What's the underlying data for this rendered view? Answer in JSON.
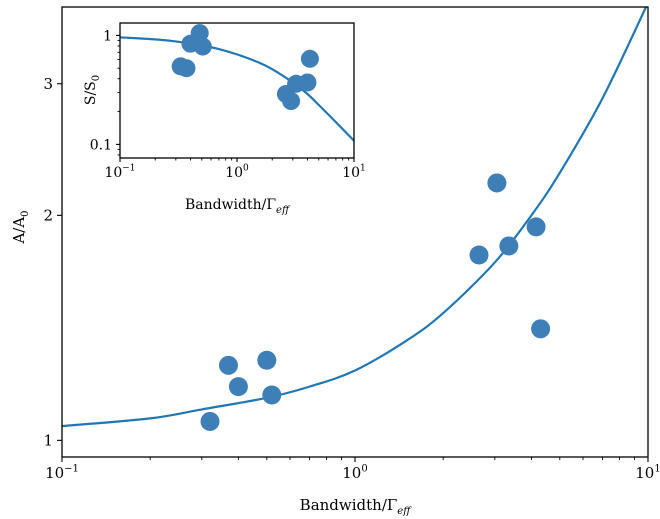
{
  "colors": {
    "series": "#1f77b4",
    "marker": "#3f7fb8",
    "axes": "#000000"
  },
  "chart_data": [
    {
      "type": "scatter",
      "panel": "main",
      "xscale": "log",
      "yscale": "log",
      "xlim": [
        0.1,
        10
      ],
      "ylim": [
        0.95,
        3.8
      ],
      "xlabel": "Bandwidth/Γ",
      "xlabel_sub": "eff",
      "ylabel": "A/A",
      "ylabel_sub": "0",
      "xticks": [
        {
          "value": 0.1,
          "base": "10",
          "exp": "−1"
        },
        {
          "value": 1,
          "base": "10",
          "exp": "0"
        },
        {
          "value": 10,
          "base": "10",
          "exp": "1"
        }
      ],
      "yticks": [
        {
          "value": 1,
          "label": "1"
        },
        {
          "value": 2,
          "label": "2"
        },
        {
          "value": 3,
          "label": "3"
        }
      ],
      "grid": false,
      "legend": "none",
      "series": [
        {
          "kind": "points",
          "x": [
            0.32,
            0.37,
            0.4,
            0.5,
            0.52,
            2.65,
            3.05,
            3.35,
            4.15,
            4.3
          ],
          "y": [
            1.06,
            1.26,
            1.18,
            1.28,
            1.15,
            1.77,
            2.21,
            1.82,
            1.93,
            1.41
          ]
        },
        {
          "kind": "fit-curve",
          "x": [
            0.1,
            0.2,
            0.3,
            0.5,
            0.7,
            1,
            1.5,
            2,
            3,
            4,
            5,
            7,
            10
          ],
          "y": [
            1.045,
            1.07,
            1.1,
            1.14,
            1.18,
            1.24,
            1.36,
            1.48,
            1.73,
            2.0,
            2.28,
            2.87,
            3.85
          ]
        }
      ]
    },
    {
      "type": "scatter",
      "panel": "inset",
      "xscale": "log",
      "yscale": "log",
      "xlim": [
        0.1,
        10
      ],
      "ylim": [
        0.075,
        1.3
      ],
      "xlabel": "Bandwidth/Γ",
      "xlabel_sub": "eff",
      "ylabel": "S/S",
      "ylabel_sub": "0",
      "xticks": [
        {
          "value": 0.1,
          "base": "10",
          "exp": "−1"
        },
        {
          "value": 1,
          "base": "10",
          "exp": "0"
        },
        {
          "value": 10,
          "base": "10",
          "exp": "1"
        }
      ],
      "yticks": [
        {
          "value": 0.1,
          "label": "0.1"
        },
        {
          "value": 1,
          "label": "1"
        }
      ],
      "grid": false,
      "legend": "none",
      "series": [
        {
          "kind": "points",
          "x": [
            0.33,
            0.37,
            0.4,
            0.48,
            0.51,
            2.62,
            2.9,
            3.2,
            4.0,
            4.2
          ],
          "y": [
            0.52,
            0.5,
            0.84,
            1.05,
            0.79,
            0.29,
            0.25,
            0.36,
            0.37,
            0.61
          ]
        },
        {
          "kind": "fit-curve",
          "x": [
            0.1,
            0.2,
            0.3,
            0.5,
            0.7,
            1,
            1.5,
            2,
            3,
            4,
            5,
            7,
            10
          ],
          "y": [
            0.96,
            0.92,
            0.88,
            0.81,
            0.75,
            0.67,
            0.57,
            0.49,
            0.37,
            0.29,
            0.23,
            0.16,
            0.108
          ]
        }
      ]
    }
  ]
}
